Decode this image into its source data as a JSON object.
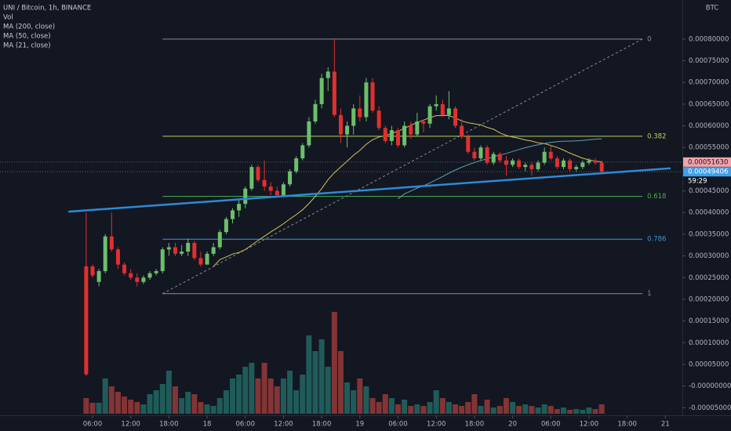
{
  "chart_data": {
    "type": "candlestick",
    "title": "UNI / Bitcoin, 1h, BINANCE",
    "indicators": [
      "Vol",
      "MA (200, close)",
      "MA (50, close)",
      "MA (21, close)"
    ],
    "y_unit": "BTC",
    "x": [
      5,
      6,
      7,
      8,
      9,
      10,
      11,
      12,
      13,
      14,
      15,
      16,
      17,
      18,
      19,
      20,
      21,
      22,
      23,
      24,
      25,
      26,
      27,
      28,
      29,
      30,
      31,
      32,
      33,
      34,
      35,
      36,
      37,
      38,
      39,
      40,
      41,
      42,
      43,
      44,
      45,
      46,
      47,
      48,
      49,
      50,
      51,
      52,
      53,
      54,
      55,
      56,
      57,
      58,
      59,
      60,
      61,
      62,
      63,
      64,
      65,
      66,
      67,
      68,
      69,
      70,
      71,
      72,
      73,
      74,
      75,
      76,
      77,
      78,
      79,
      80,
      81,
      82,
      83,
      84,
      85,
      86
    ],
    "open": [
      0.000276,
      0.000276,
      0.00024,
      0.000265,
      0.000345,
      0.000315,
      0.00028,
      0.00026,
      0.00025,
      0.00024,
      0.00025,
      0.00026,
      0.000265,
      0.000315,
      0.00032,
      0.000305,
      0.00031,
      0.00033,
      0.000295,
      0.00028,
      0.000305,
      0.00032,
      0.000355,
      0.000385,
      0.000405,
      0.00042,
      0.000455,
      0.000505,
      0.000475,
      0.00046,
      0.00045,
      0.00044,
      0.000465,
      0.000495,
      0.000525,
      0.000555,
      0.00061,
      0.00065,
      0.00071,
      0.000725,
      0.000625,
      0.00058,
      0.0006,
      0.00064,
      0.00062,
      0.0007,
      0.000635,
      0.000595,
      0.000565,
      0.00059,
      0.000555,
      0.0006,
      0.00058,
      0.00061,
      0.000605,
      0.000645,
      0.00065,
      0.000625,
      0.00064,
      0.0006,
      0.000575,
      0.00054,
      0.000525,
      0.00055,
      0.000515,
      0.000535,
      0.00052,
      0.00051,
      0.00052,
      0.000505,
      0.00051,
      0.0005,
      0.000515,
      0.00054,
      0.000525,
      0.000505,
      0.00052,
      0.0005,
      0.000505,
      0.000515,
      0.00052,
      0.000515
    ],
    "high": [
      0.0004,
      0.00028,
      0.00027,
      0.00035,
      0.0004,
      0.00032,
      0.000285,
      0.00027,
      0.00026,
      0.000255,
      0.000265,
      0.00027,
      0.00032,
      0.00033,
      0.00033,
      0.000325,
      0.00034,
      0.000335,
      0.00031,
      0.00031,
      0.00033,
      0.00036,
      0.00039,
      0.00041,
      0.00043,
      0.00046,
      0.00051,
      0.00051,
      0.00052,
      0.00047,
      0.00046,
      0.00047,
      0.0005,
      0.00053,
      0.00056,
      0.00062,
      0.00066,
      0.00072,
      0.000735,
      0.0008,
      0.00064,
      0.00061,
      0.00065,
      0.00067,
      0.00071,
      0.00071,
      0.000645,
      0.0006,
      0.0006,
      0.000595,
      0.00061,
      0.00061,
      0.00063,
      0.000615,
      0.00065,
      0.00067,
      0.00066,
      0.00068,
      0.000645,
      0.000615,
      0.00058,
      0.00055,
      0.000555,
      0.000555,
      0.00054,
      0.00054,
      0.00053,
      0.000525,
      0.000525,
      0.000515,
      0.000515,
      0.00052,
      0.00055,
      0.000555,
      0.00053,
      0.000525,
      0.000525,
      0.00051,
      0.00052,
      0.000525,
      0.000525,
      0.00052
    ],
    "low": [
      2.3e-05,
      0.00025,
      0.00023,
      0.00026,
      0.00031,
      0.00027,
      0.000255,
      0.000245,
      0.00023,
      0.000235,
      0.000245,
      0.000255,
      0.00026,
      0.0003,
      0.0003,
      0.0003,
      0.0003,
      0.00029,
      0.000275,
      0.00028,
      0.0003,
      0.000315,
      0.00035,
      0.000375,
      0.00039,
      0.00041,
      0.00045,
      0.00047,
      0.00045,
      0.00044,
      0.000435,
      0.000435,
      0.00046,
      0.00049,
      0.00052,
      0.00055,
      0.000605,
      0.00064,
      0.00068,
      0.00062,
      0.00056,
      0.00055,
      0.00058,
      0.00061,
      0.00061,
      0.00063,
      0.00059,
      0.00056,
      0.000555,
      0.00055,
      0.00055,
      0.00057,
      0.000575,
      0.000585,
      0.000595,
      0.000635,
      0.00062,
      0.000615,
      0.000595,
      0.00057,
      0.000535,
      0.00052,
      0.00052,
      0.00051,
      0.00051,
      0.000515,
      0.000485,
      0.000505,
      0.0005,
      0.000495,
      0.000485,
      0.000495,
      0.00051,
      0.00052,
      0.0005,
      0.0005,
      0.000495,
      0.000495,
      0.0005,
      0.00051,
      0.00051,
      0.000493
    ],
    "close": [
      2.7e-05,
      0.000255,
      0.000265,
      0.000345,
      0.000315,
      0.00028,
      0.00026,
      0.00025,
      0.00024,
      0.00025,
      0.00026,
      0.000265,
      0.000315,
      0.00032,
      0.000305,
      0.00031,
      0.00033,
      0.000295,
      0.00028,
      0.000305,
      0.00032,
      0.000355,
      0.000385,
      0.000405,
      0.00042,
      0.000455,
      0.000505,
      0.000475,
      0.00046,
      0.00045,
      0.00044,
      0.000465,
      0.000495,
      0.000525,
      0.000555,
      0.00061,
      0.00065,
      0.00071,
      0.000725,
      0.000625,
      0.00058,
      0.0006,
      0.00064,
      0.00062,
      0.0007,
      0.000635,
      0.000595,
      0.000565,
      0.00059,
      0.000555,
      0.0006,
      0.00058,
      0.00061,
      0.000605,
      0.000645,
      0.00065,
      0.000625,
      0.00064,
      0.0006,
      0.000575,
      0.00054,
      0.000525,
      0.00055,
      0.000515,
      0.000535,
      0.00052,
      0.00051,
      0.00052,
      0.000505,
      0.00051,
      0.0005,
      0.000515,
      0.00054,
      0.000525,
      0.000505,
      0.00052,
      0.0005,
      0.000505,
      0.000515,
      0.00052,
      0.000515,
      0.00049406
    ],
    "volume": [
      20,
      14,
      14,
      45,
      35,
      28,
      22,
      18,
      15,
      12,
      25,
      30,
      38,
      55,
      35,
      20,
      28,
      25,
      15,
      12,
      10,
      20,
      30,
      45,
      50,
      60,
      65,
      45,
      65,
      45,
      35,
      45,
      55,
      30,
      50,
      100,
      80,
      95,
      60,
      130,
      80,
      40,
      30,
      45,
      35,
      20,
      15,
      25,
      20,
      12,
      18,
      10,
      12,
      10,
      15,
      30,
      20,
      15,
      12,
      10,
      15,
      25,
      10,
      18,
      8,
      10,
      20,
      15,
      10,
      12,
      10,
      8,
      12,
      10,
      6,
      8,
      5,
      6,
      5,
      8,
      6,
      12
    ],
    "up_color": "#6cbf6c",
    "down_color": "#e0302d",
    "volume_up_color": "#1f5c59",
    "volume_down_color": "#833434",
    "moving_averages": [
      {
        "period": 21,
        "color": "#d6c25a"
      },
      {
        "period": 50,
        "color": "#5aa3b3"
      }
    ],
    "fib": {
      "start_x": 17,
      "end_x": 92.4,
      "low": 0.000213,
      "high": 0.0008,
      "levels": [
        {
          "level": 0,
          "color": "#8a8d94"
        },
        {
          "level": 0.382,
          "color": "#b9d25c"
        },
        {
          "level": 0.618,
          "color": "#4caf50"
        },
        {
          "level": 0.786,
          "color": "#3a9bd1"
        },
        {
          "level": 1,
          "color": "#8a8d94"
        }
      ]
    },
    "trendline": {
      "x": [
        2.2,
        96.8
      ],
      "y": [
        0.000402,
        0.000502
      ],
      "color": "#2d8ad6"
    },
    "price_tags": [
      {
        "value": 0.0005163,
        "label": "0.00051630",
        "color": "#f2a3ab"
      },
      {
        "value": 0.00049406,
        "label": "0.00049406",
        "color": "#3f9fe8"
      }
    ],
    "countdown": "59:29",
    "xlim": [
      -8.54,
      98.67
    ],
    "ylim": [
      -6.75e-05,
      0.00089
    ],
    "xticks": [
      {
        "value": 6,
        "label": "06:00"
      },
      {
        "value": 12,
        "label": "12:00"
      },
      {
        "value": 18,
        "label": "18:00"
      },
      {
        "value": 24,
        "label": "18"
      },
      {
        "value": 30,
        "label": "06:00"
      },
      {
        "value": 36,
        "label": "12:00"
      },
      {
        "value": 42,
        "label": "18:00"
      },
      {
        "value": 48,
        "label": "19"
      },
      {
        "value": 54,
        "label": "06:00"
      },
      {
        "value": 60,
        "label": "12:00"
      },
      {
        "value": 66,
        "label": "18:00"
      },
      {
        "value": 72,
        "label": "20"
      },
      {
        "value": 78,
        "label": "06:00"
      },
      {
        "value": 84,
        "label": "12:00"
      },
      {
        "value": 90,
        "label": "18:00"
      },
      {
        "value": 96,
        "label": "21"
      }
    ],
    "yticks": [
      {
        "value": 0.0008,
        "label": "0.00080000"
      },
      {
        "value": 0.00075,
        "label": "0.00075000"
      },
      {
        "value": 0.0007,
        "label": "0.00070000"
      },
      {
        "value": 0.00065,
        "label": "0.00065000"
      },
      {
        "value": 0.0006,
        "label": "0.00060000"
      },
      {
        "value": 0.00055,
        "label": "0.00055000"
      },
      {
        "value": 0.00045,
        "label": "0.00045000"
      },
      {
        "value": 0.0004,
        "label": "0.00040000"
      },
      {
        "value": 0.00035,
        "label": "0.00035000"
      },
      {
        "value": 0.0003,
        "label": "0.00030000"
      },
      {
        "value": 0.00025,
        "label": "0.00025000"
      },
      {
        "value": 0.0002,
        "label": "0.00020000"
      },
      {
        "value": 0.00015,
        "label": "0.00015000"
      },
      {
        "value": 0.0001,
        "label": "0.00010000"
      },
      {
        "value": 5e-05,
        "label": "0.00005000"
      },
      {
        "value": 0,
        "label": "-0.00000000"
      },
      {
        "value": -5e-05,
        "label": "-0.00005000"
      }
    ]
  }
}
